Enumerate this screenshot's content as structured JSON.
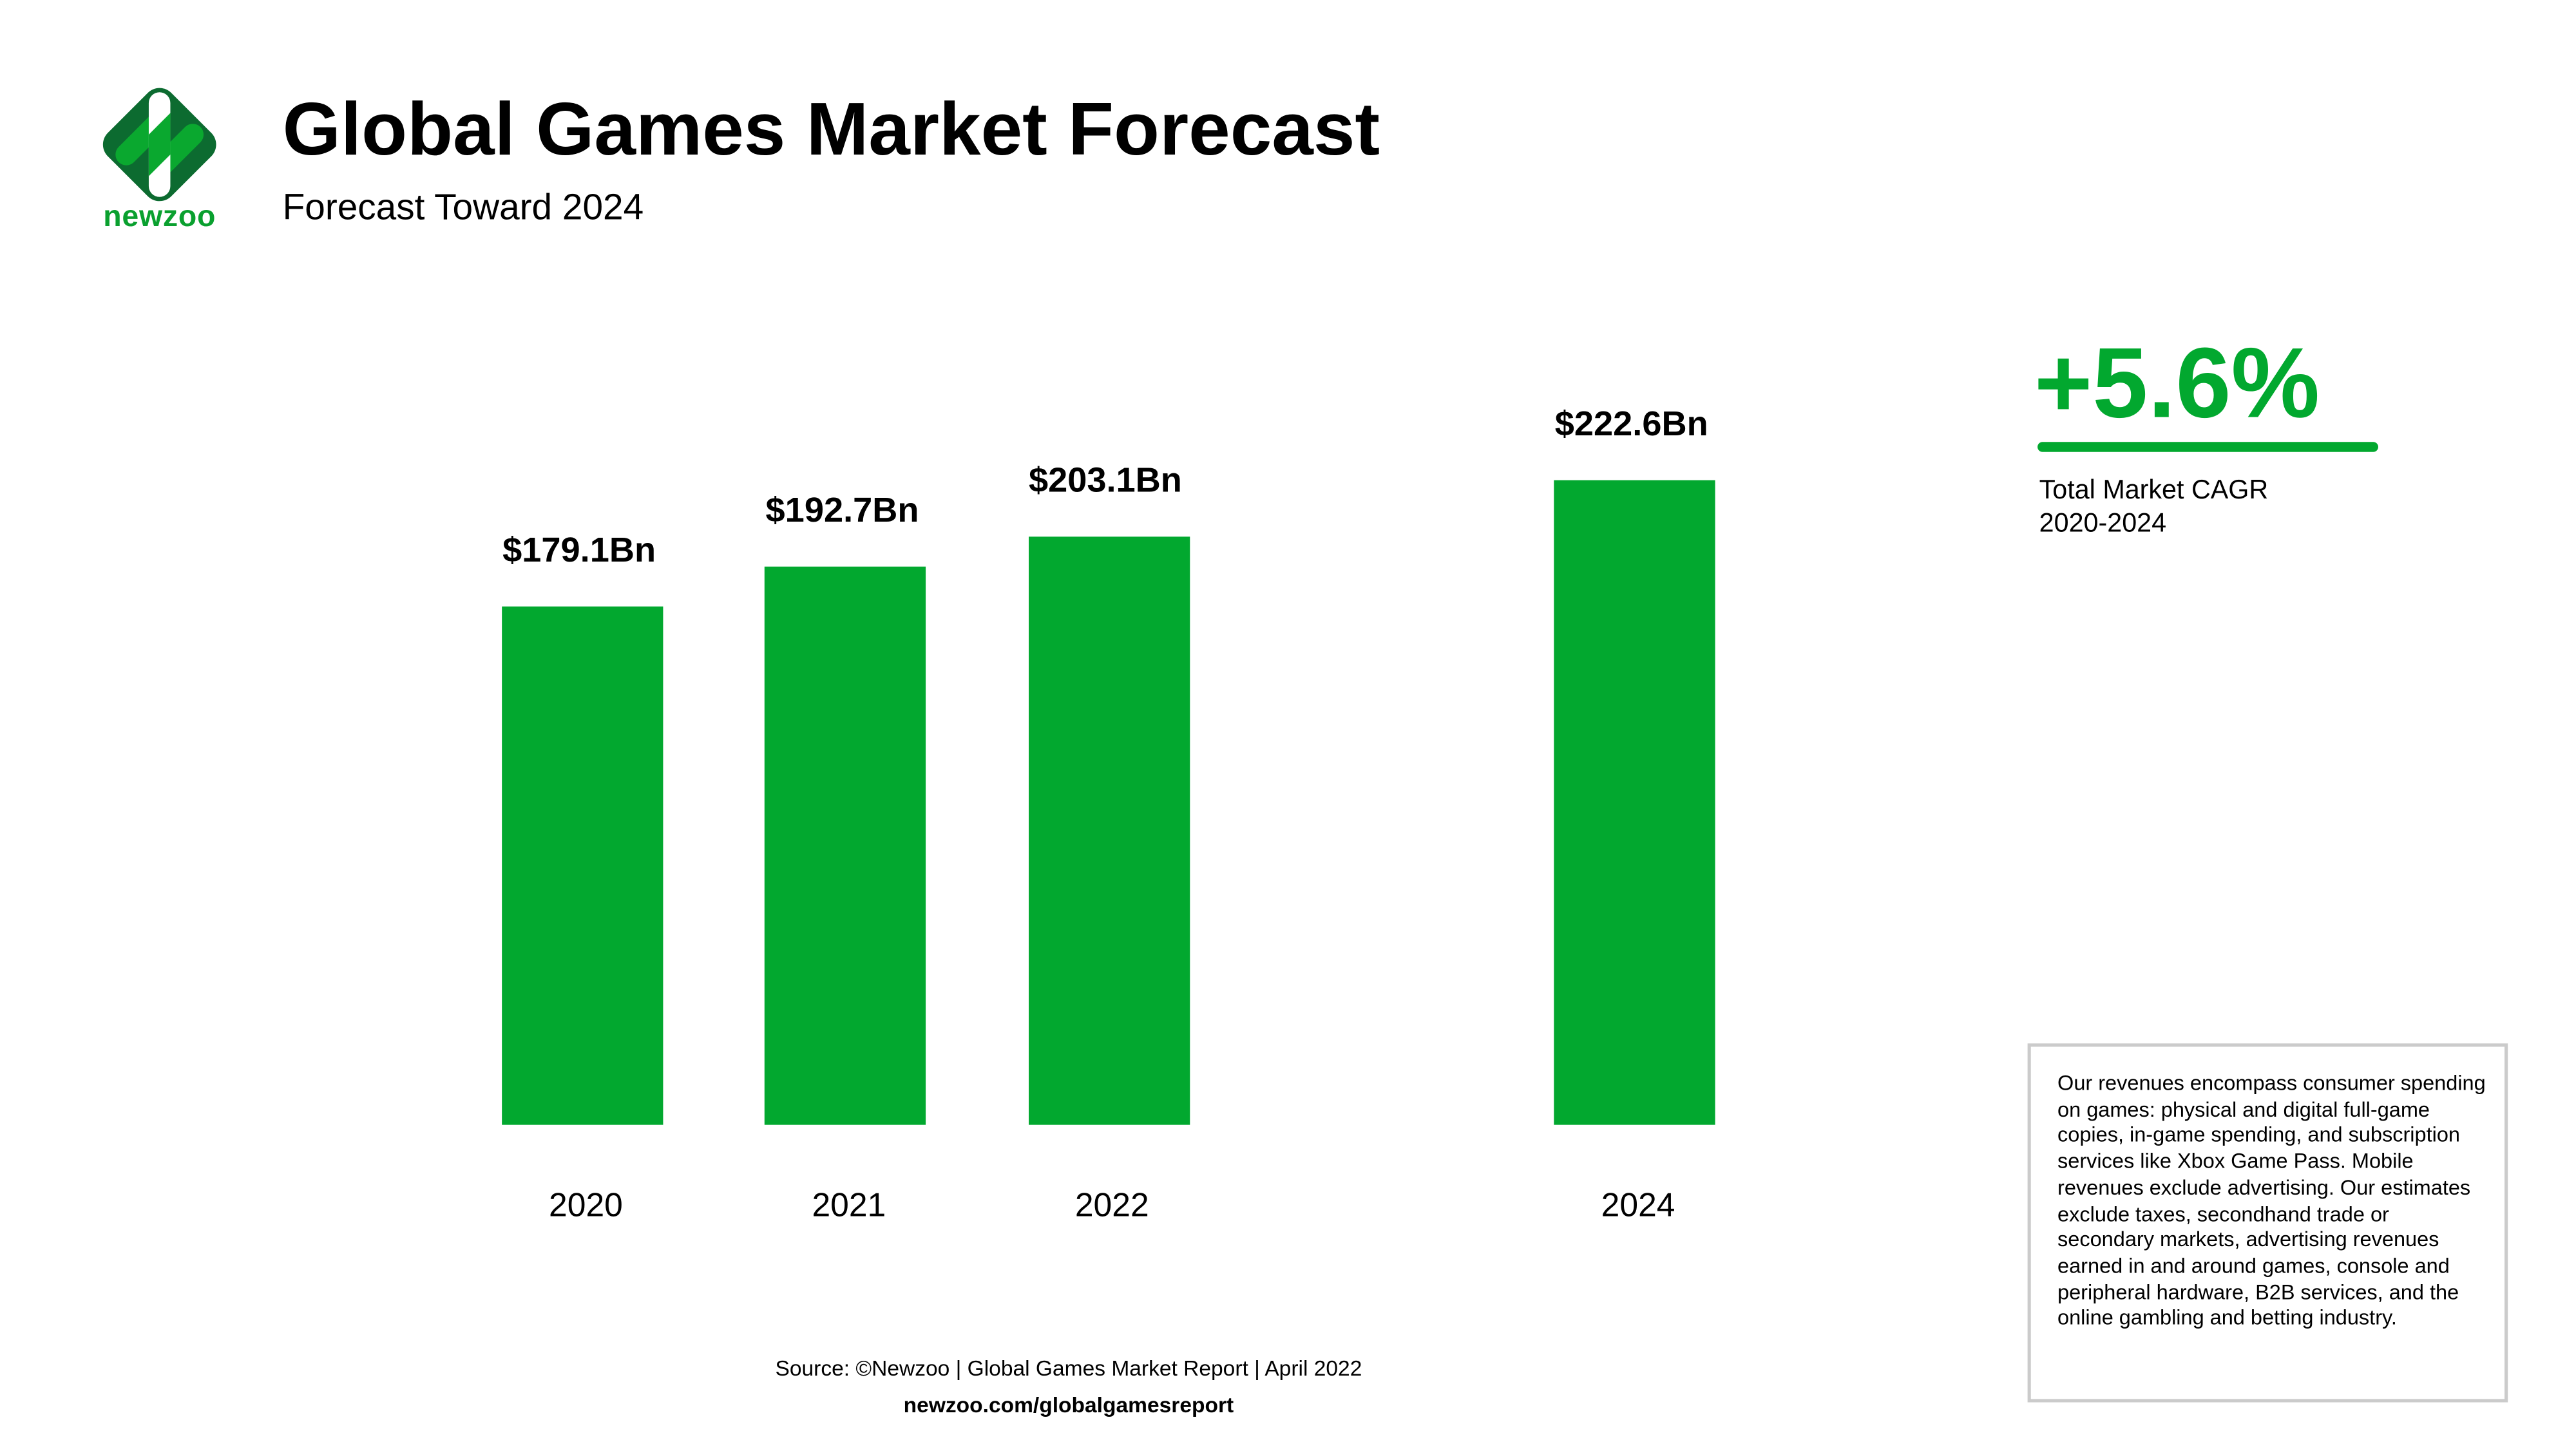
{
  "brand": {
    "logo_text": "newzoo",
    "colors": {
      "dark": "#0c6b30",
      "light": "#0aa82f",
      "white": "#ffffff"
    }
  },
  "header": {
    "title": "Global Games Market Forecast",
    "subtitle": "Forecast Toward 2024"
  },
  "chart_data": {
    "type": "bar",
    "title": "Global Games Market Forecast",
    "subtitle": "Forecast Toward 2024",
    "categories": [
      "2020",
      "2021",
      "2022",
      "2024"
    ],
    "x": [
      2020,
      2021,
      2022,
      2024
    ],
    "values": [
      179.1,
      192.7,
      203.1,
      222.6
    ],
    "data_labels": [
      "$179.1Bn",
      "$192.7Bn",
      "$203.1Bn",
      "$222.6Bn"
    ],
    "unit": "Bn USD",
    "ylim": [
      0,
      250
    ],
    "grid": false,
    "color": "#02a82f"
  },
  "cagr": {
    "value": "+5.6%",
    "label_line1": "Total Market CAGR",
    "label_line2": "2020-2024",
    "color": "#02a82f"
  },
  "notes": "Our revenues encompass consumer spending on games: physical and digital full-game copies, in-game spending, and subscription services like Xbox Game Pass. Mobile revenues exclude advertising. Our estimates exclude taxes, secondhand trade or secondary markets, advertising revenues earned in and around games, console and peripheral hardware, B2B services, and the online gambling and betting industry.",
  "footer": {
    "source": "Source: ©Newzoo | Global Games Market Report | April 2022",
    "url": "newzoo.com/globalgamesreport"
  }
}
